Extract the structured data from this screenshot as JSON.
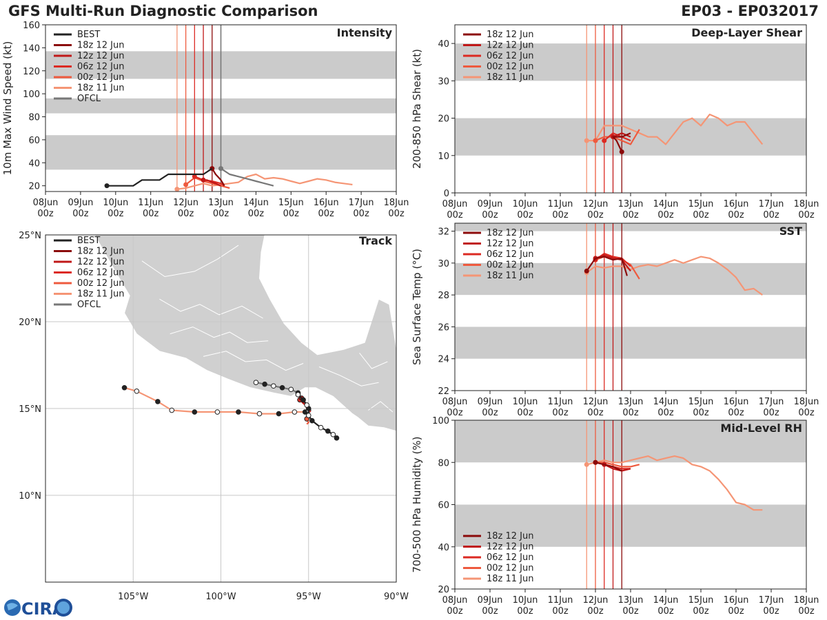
{
  "header": {
    "left_title": "GFS Multi-Run Diagnostic Comparison",
    "right_title": "EP03 - EP032017"
  },
  "logo": {
    "text": "CIRA"
  },
  "colors": {
    "best": "#222222",
    "ofcl": "#777777",
    "runs": [
      "#8b0a0a",
      "#c01818",
      "#dc2a22",
      "#ee5a3e",
      "#f59575"
    ],
    "band": "#cbcbcb",
    "land": "#d0d0d0"
  },
  "time_axis": {
    "ticks": [
      "08Jun 00z",
      "09Jun 00z",
      "10Jun 00z",
      "11Jun 00z",
      "12Jun 00z",
      "13Jun 00z",
      "14Jun 00z",
      "15Jun 00z",
      "16Jun 00z",
      "17Jun 00z",
      "18Jun 00z"
    ],
    "tick_days": [
      0,
      1,
      2,
      3,
      4,
      5,
      6,
      7,
      8,
      9,
      10
    ],
    "init_days": [
      3.75,
      4.0,
      4.25,
      4.5,
      4.75
    ]
  },
  "chart_data": [
    {
      "type": "line",
      "id": "intensity",
      "title": "Intensity",
      "ylabel": "10m Max Wind Speed (kt)",
      "xlim": [
        0,
        10
      ],
      "ylim": [
        15,
        160
      ],
      "yticks": [
        20,
        40,
        60,
        80,
        100,
        120,
        140,
        160
      ],
      "bands": [
        [
          34,
          64
        ],
        [
          83,
          96
        ],
        [
          113,
          137
        ]
      ],
      "show_ofcl_line": true,
      "legend": [
        "BEST",
        "18z 12 Jun",
        "12z 12 Jun",
        "06z 12 Jun",
        "00z 12 Jun",
        "18z 11 Jun",
        "OFCL"
      ],
      "series": [
        {
          "name": "BEST",
          "role": "best",
          "x": [
            1.75,
            2.0,
            2.25,
            2.5,
            2.75,
            3.0,
            3.25,
            3.5,
            3.75,
            4.0,
            4.25,
            4.5,
            4.75
          ],
          "y": [
            20,
            20,
            20,
            20,
            25,
            25,
            25,
            30,
            30,
            30,
            30,
            30,
            35
          ]
        },
        {
          "name": "OFCL",
          "role": "ofcl",
          "x": [
            5.0,
            5.25,
            5.5,
            5.75,
            6.0,
            6.25,
            6.5
          ],
          "y": [
            35,
            30,
            28,
            26,
            24,
            22,
            20
          ]
        },
        {
          "name": "18z 12 Jun",
          "role": "run",
          "run": 0,
          "x": [
            4.75,
            4.85,
            5.0,
            5.1
          ],
          "y": [
            35,
            30,
            25,
            20
          ]
        },
        {
          "name": "12z 12 Jun",
          "role": "run",
          "run": 1,
          "x": [
            4.5,
            4.6,
            4.75,
            4.85,
            5.0
          ],
          "y": [
            25,
            25,
            23,
            22,
            20
          ]
        },
        {
          "name": "06z 12 Jun",
          "role": "run",
          "run": 2,
          "x": [
            4.25,
            4.5,
            4.75,
            5.0,
            5.1
          ],
          "y": [
            28,
            25,
            24,
            22,
            20
          ]
        },
        {
          "name": "00z 12 Jun",
          "role": "run",
          "run": 3,
          "x": [
            4.0,
            4.25,
            4.5,
            4.75,
            5.0,
            5.25
          ],
          "y": [
            21,
            27,
            24,
            22,
            20,
            18
          ]
        },
        {
          "name": "18z 11 Jun",
          "role": "run",
          "run": 4,
          "x": [
            3.75,
            4.0,
            4.25,
            4.5,
            4.75,
            5.0,
            5.25,
            5.5,
            5.75,
            6.0,
            6.25,
            6.5,
            6.75,
            7.0,
            7.25,
            7.5,
            7.75,
            8.0,
            8.25,
            8.5,
            8.75
          ],
          "y": [
            17,
            18,
            20,
            22,
            20,
            21,
            22,
            23,
            28,
            30,
            26,
            27,
            26,
            24,
            22,
            24,
            26,
            25,
            23,
            22,
            21
          ]
        }
      ]
    },
    {
      "type": "line",
      "id": "shear",
      "title": "Deep-Layer Shear",
      "ylabel": "200-850 hPa Shear (kt)",
      "xlim": [
        0,
        10
      ],
      "ylim": [
        0,
        45
      ],
      "yticks": [
        0,
        10,
        20,
        30,
        40
      ],
      "bands": [
        [
          10,
          20
        ],
        [
          30,
          40
        ]
      ],
      "legend": [
        "18z 12 Jun",
        "12z 12 Jun",
        "06z 12 Jun",
        "00z 12 Jun",
        "18z 11 Jun"
      ],
      "series": [
        {
          "name": "18z 12 Jun",
          "role": "run",
          "run": 0,
          "x": [
            4.75,
            4.6,
            4.5,
            4.75,
            5.0
          ],
          "y": [
            11,
            14,
            15,
            15,
            16
          ]
        },
        {
          "name": "12z 12 Jun",
          "role": "run",
          "run": 1,
          "x": [
            4.5,
            4.75,
            5.0
          ],
          "y": [
            15,
            16,
            15
          ]
        },
        {
          "name": "06z 12 Jun",
          "role": "run",
          "run": 2,
          "x": [
            4.25,
            4.5,
            4.75,
            5.0
          ],
          "y": [
            14,
            16,
            15,
            14
          ]
        },
        {
          "name": "00z 12 Jun",
          "role": "run",
          "run": 3,
          "x": [
            4.0,
            4.25,
            4.5,
            4.75,
            5.0,
            5.25
          ],
          "y": [
            14,
            15,
            15,
            14,
            13,
            17
          ]
        },
        {
          "name": "18z 11 Jun",
          "role": "run",
          "run": 4,
          "x": [
            3.75,
            4.0,
            4.25,
            4.5,
            4.75,
            5.0,
            5.25,
            5.5,
            5.75,
            6.0,
            6.25,
            6.5,
            6.75,
            7.0,
            7.25,
            7.5,
            7.75,
            8.0,
            8.25,
            8.5,
            8.75
          ],
          "y": [
            14,
            14,
            18,
            18,
            18,
            17,
            16,
            15,
            15,
            13,
            16,
            19,
            20,
            18,
            21,
            20,
            18,
            19,
            19,
            16,
            13
          ]
        }
      ]
    },
    {
      "type": "map",
      "id": "track",
      "title": "Track",
      "lon_range": [
        -110,
        -90
      ],
      "lat_range": [
        5,
        25
      ],
      "lon_ticks": [
        -105,
        -100,
        -95,
        -90
      ],
      "lon_labels": [
        "105°W",
        "100°W",
        "95°W",
        "90°W"
      ],
      "lat_ticks": [
        10,
        15,
        20,
        25
      ],
      "lat_labels": [
        "10°N",
        "15°N",
        "20°N",
        "25°N"
      ],
      "legend": [
        "BEST",
        "18z 12 Jun",
        "12z 12 Jun",
        "06z 12 Jun",
        "00z 12 Jun",
        "18z 11 Jun",
        "OFCL"
      ],
      "series": [
        {
          "name": "BEST",
          "role": "best",
          "lon": [
            -93.4,
            -93.6,
            -93.9,
            -94.3,
            -94.8,
            -95.0,
            -95.0,
            -95.1,
            -95.3,
            -95.6
          ],
          "lat": [
            13.3,
            13.5,
            13.7,
            13.9,
            14.3,
            14.6,
            15.0,
            15.2,
            15.5,
            15.8
          ]
        },
        {
          "name": "OFCL",
          "role": "ofcl",
          "lon": [
            -95.6,
            -96.0,
            -96.5,
            -97.0,
            -97.5,
            -98.0
          ],
          "lat": [
            15.9,
            16.1,
            16.2,
            16.3,
            16.4,
            16.5
          ]
        },
        {
          "name": "18z 12 Jun",
          "role": "run",
          "run": 0,
          "lon": [
            -95.6,
            -95.4,
            -95.3
          ],
          "lat": [
            15.8,
            15.5,
            15.3
          ]
        },
        {
          "name": "12z 12 Jun",
          "role": "run",
          "run": 1,
          "lon": [
            -95.4,
            -95.2,
            -95.1
          ],
          "lat": [
            15.6,
            15.3,
            15.0
          ]
        },
        {
          "name": "06z 12 Jun",
          "role": "run",
          "run": 2,
          "lon": [
            -95.5,
            -95.2,
            -95.0,
            -94.9
          ],
          "lat": [
            15.5,
            15.2,
            15.0,
            14.8
          ]
        },
        {
          "name": "00z 12 Jun",
          "role": "run",
          "run": 3,
          "lon": [
            -95.1,
            -95.0,
            -95.1
          ],
          "lat": [
            14.4,
            14.2,
            14.1
          ]
        },
        {
          "name": "18z 11 Jun",
          "role": "run",
          "run": 4,
          "lon": [
            -105.5,
            -104.8,
            -103.6,
            -102.8,
            -101.5,
            -100.2,
            -99.0,
            -97.8,
            -96.7,
            -95.8,
            -95.2,
            -95.0
          ],
          "lat": [
            16.2,
            16.0,
            15.4,
            14.9,
            14.8,
            14.8,
            14.8,
            14.7,
            14.7,
            14.8,
            14.8,
            14.9
          ]
        }
      ]
    },
    {
      "type": "line",
      "id": "sst",
      "title": "SST",
      "ylabel": "Sea Surface Temp (°C)",
      "xlim": [
        0,
        10
      ],
      "ylim": [
        22,
        32.5
      ],
      "yticks": [
        22,
        24,
        26,
        28,
        30,
        32
      ],
      "bands": [
        [
          24,
          26
        ],
        [
          28,
          30
        ],
        [
          32,
          32.5
        ]
      ],
      "legend": [
        "18z 12 Jun",
        "12z 12 Jun",
        "06z 12 Jun",
        "00z 12 Jun",
        "18z 11 Jun"
      ],
      "series": [
        {
          "name": "18z 12 Jun",
          "role": "run",
          "run": 0,
          "x": [
            3.75,
            4.0,
            4.25,
            4.5,
            4.75,
            4.9
          ],
          "y": [
            29.5,
            30.3,
            30.4,
            30.2,
            30.3,
            29.2
          ]
        },
        {
          "name": "12z 12 Jun",
          "role": "run",
          "run": 1,
          "x": [
            4.0,
            4.25,
            4.5,
            4.75,
            5.0
          ],
          "y": [
            30.3,
            30.5,
            30.3,
            30.2,
            29.5
          ]
        },
        {
          "name": "06z 12 Jun",
          "role": "run",
          "run": 2,
          "x": [
            4.0,
            4.25,
            4.5,
            4.75,
            5.0
          ],
          "y": [
            30.2,
            30.6,
            30.4,
            30.3,
            29.8
          ]
        },
        {
          "name": "00z 12 Jun",
          "role": "run",
          "run": 3,
          "x": [
            4.0,
            4.25,
            4.5,
            4.75,
            5.0,
            5.25
          ],
          "y": [
            30.2,
            30.4,
            30.4,
            30.2,
            29.9,
            29.0
          ]
        },
        {
          "name": "18z 11 Jun",
          "role": "run",
          "run": 4,
          "x": [
            3.75,
            4.0,
            4.25,
            4.5,
            4.75,
            5.0,
            5.25,
            5.5,
            5.75,
            6.0,
            6.25,
            6.5,
            6.75,
            7.0,
            7.25,
            7.5,
            7.75,
            8.0,
            8.25,
            8.5,
            8.75
          ],
          "y": [
            29.4,
            29.8,
            29.7,
            29.8,
            29.8,
            29.6,
            29.8,
            29.9,
            29.8,
            30.0,
            30.2,
            30.0,
            30.2,
            30.4,
            30.3,
            30.0,
            29.6,
            29.1,
            28.3,
            28.4,
            28.0
          ]
        }
      ]
    },
    {
      "type": "line",
      "id": "rh",
      "title": "Mid-Level RH",
      "ylabel": "700-500 hPa Humidity (%)",
      "xlim": [
        0,
        10
      ],
      "ylim": [
        20,
        100
      ],
      "yticks": [
        20,
        40,
        60,
        80,
        100
      ],
      "bands": [
        [
          40,
          60
        ],
        [
          80,
          100
        ]
      ],
      "legend": [
        "18z 12 Jun",
        "12z 12 Jun",
        "06z 12 Jun",
        "00z 12 Jun",
        "18z 11 Jun"
      ],
      "series": [
        {
          "name": "18z 12 Jun",
          "role": "run",
          "run": 0,
          "x": [
            4.0,
            4.25,
            4.5,
            4.75
          ],
          "y": [
            80,
            79,
            78,
            76
          ]
        },
        {
          "name": "12z 12 Jun",
          "role": "run",
          "run": 1,
          "x": [
            4.25,
            4.5,
            4.75,
            5.0
          ],
          "y": [
            79,
            77,
            76,
            77
          ]
        },
        {
          "name": "06z 12 Jun",
          "role": "run",
          "run": 2,
          "x": [
            4.0,
            4.25,
            4.5,
            4.75,
            5.0
          ],
          "y": [
            80,
            79,
            78,
            77,
            77
          ]
        },
        {
          "name": "00z 12 Jun",
          "role": "run",
          "run": 3,
          "x": [
            4.0,
            4.25,
            4.5,
            4.75,
            5.0,
            5.25
          ],
          "y": [
            80,
            80,
            79,
            78,
            78,
            79
          ]
        },
        {
          "name": "18z 11 Jun",
          "role": "run",
          "run": 4,
          "x": [
            3.75,
            4.0,
            4.25,
            4.5,
            4.75,
            5.0,
            5.25,
            5.5,
            5.75,
            6.0,
            6.25,
            6.5,
            6.75,
            7.0,
            7.25,
            7.5,
            7.75,
            8.0,
            8.25,
            8.5,
            8.75
          ],
          "y": [
            79,
            80,
            81,
            80,
            80,
            81,
            82,
            83,
            81,
            82,
            83,
            82,
            79,
            78,
            76,
            72,
            67,
            61,
            60,
            57.5,
            57.5
          ]
        }
      ]
    }
  ]
}
